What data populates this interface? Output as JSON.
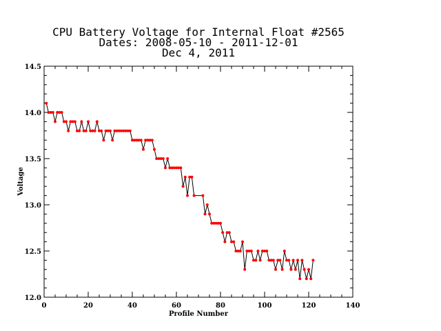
{
  "chart_data": {
    "type": "line",
    "title_lines": [
      "CPU Battery Voltage for Internal Float #2565",
      "Dates:  2008-05-10 -  2011-12-01",
      "Dec  4, 2011"
    ],
    "xlabel": "Profile Number",
    "ylabel": "Voltage",
    "xlim": [
      0,
      140
    ],
    "ylim": [
      12.0,
      14.5
    ],
    "x_ticks": [
      0,
      20,
      40,
      60,
      80,
      100,
      120,
      140
    ],
    "x_tick_labels": [
      "0",
      "20",
      "40",
      "60",
      "80",
      "100",
      "120",
      "140"
    ],
    "y_ticks": [
      12.0,
      12.5,
      13.0,
      13.5,
      14.0,
      14.5
    ],
    "y_tick_labels": [
      "12.0",
      "12.5",
      "13.0",
      "13.5",
      "14.0",
      "14.5"
    ],
    "grid": false,
    "series": [
      {
        "line_color": "#000000",
        "marker_color": "#ff0000",
        "x": [
          1,
          2,
          3,
          4,
          5,
          6,
          7,
          8,
          9,
          10,
          11,
          12,
          13,
          14,
          15,
          16,
          17,
          18,
          19,
          20,
          21,
          22,
          23,
          24,
          25,
          26,
          27,
          28,
          29,
          30,
          31,
          32,
          33,
          34,
          35,
          36,
          37,
          38,
          39,
          40,
          41,
          42,
          43,
          44,
          45,
          46,
          47,
          48,
          49,
          50,
          51,
          52,
          53,
          54,
          55,
          56,
          57,
          58,
          59,
          60,
          61,
          62,
          63,
          64,
          65,
          66,
          67,
          68,
          72,
          73,
          74,
          75,
          76,
          77,
          78,
          79,
          80,
          81,
          82,
          83,
          84,
          85,
          86,
          87,
          88,
          89,
          90,
          91,
          92,
          93,
          94,
          95,
          96,
          97,
          98,
          99,
          100,
          101,
          102,
          103,
          104,
          105,
          106,
          107,
          108,
          109,
          110,
          111,
          112,
          113,
          114,
          115,
          116,
          117,
          118,
          119,
          120,
          121,
          122
        ],
        "values": [
          14.1,
          14.0,
          14.0,
          14.0,
          13.9,
          14.0,
          14.0,
          14.0,
          13.9,
          13.9,
          13.8,
          13.9,
          13.9,
          13.9,
          13.8,
          13.8,
          13.9,
          13.8,
          13.8,
          13.9,
          13.8,
          13.8,
          13.8,
          13.9,
          13.8,
          13.8,
          13.7,
          13.8,
          13.8,
          13.8,
          13.7,
          13.8,
          13.8,
          13.8,
          13.8,
          13.8,
          13.8,
          13.8,
          13.8,
          13.7,
          13.7,
          13.7,
          13.7,
          13.7,
          13.6,
          13.7,
          13.7,
          13.7,
          13.7,
          13.6,
          13.5,
          13.5,
          13.5,
          13.5,
          13.4,
          13.5,
          13.4,
          13.4,
          13.4,
          13.4,
          13.4,
          13.4,
          13.2,
          13.3,
          13.1,
          13.3,
          13.3,
          13.1,
          13.1,
          12.9,
          13.0,
          12.9,
          12.8,
          12.8,
          12.8,
          12.8,
          12.8,
          12.7,
          12.6,
          12.7,
          12.7,
          12.6,
          12.6,
          12.5,
          12.5,
          12.5,
          12.6,
          12.3,
          12.5,
          12.5,
          12.5,
          12.4,
          12.4,
          12.5,
          12.4,
          12.5,
          12.5,
          12.5,
          12.4,
          12.4,
          12.4,
          12.3,
          12.4,
          12.4,
          12.3,
          12.5,
          12.4,
          12.4,
          12.3,
          12.4,
          12.3,
          12.4,
          12.2,
          12.4,
          12.3,
          12.2,
          12.3,
          12.2,
          12.4
        ]
      }
    ]
  }
}
